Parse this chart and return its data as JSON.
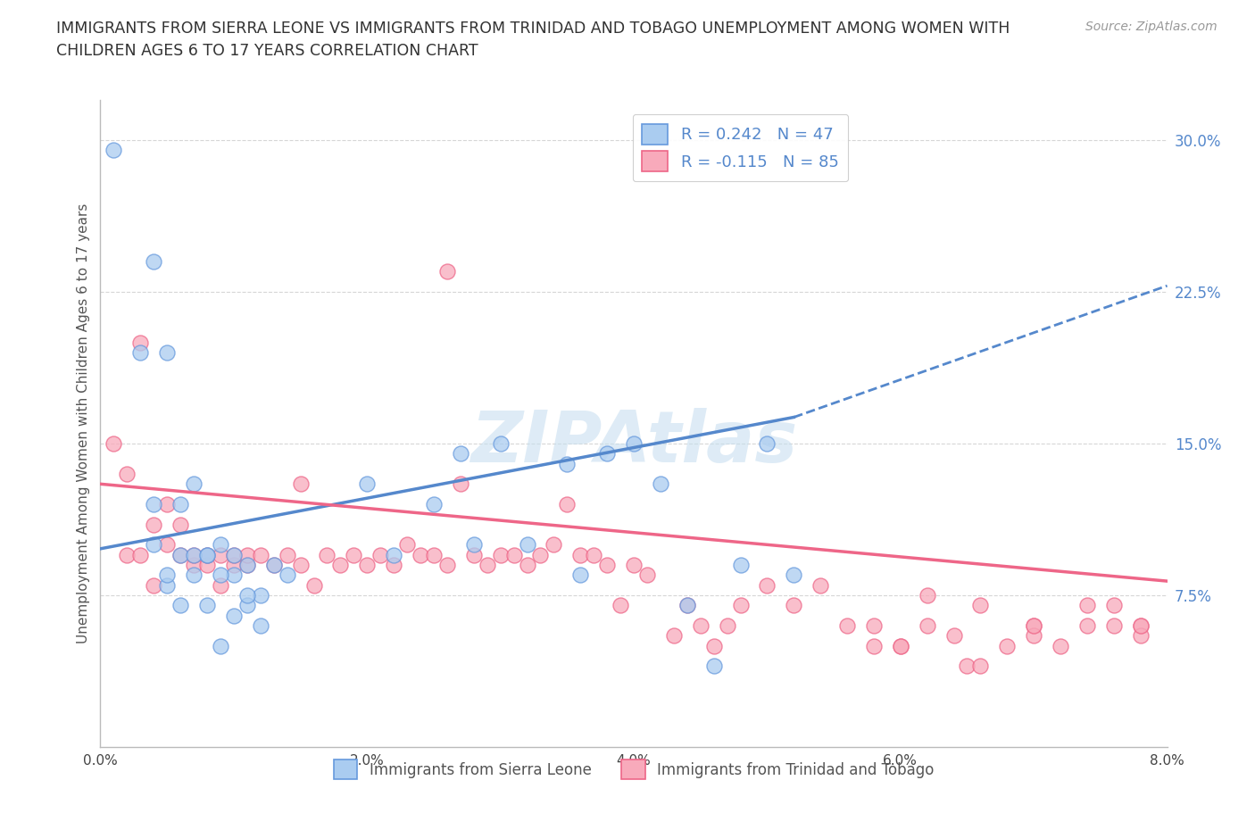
{
  "title_line1": "IMMIGRANTS FROM SIERRA LEONE VS IMMIGRANTS FROM TRINIDAD AND TOBAGO UNEMPLOYMENT AMONG WOMEN WITH",
  "title_line2": "CHILDREN AGES 6 TO 17 YEARS CORRELATION CHART",
  "source": "Source: ZipAtlas.com",
  "ylabel": "Unemployment Among Women with Children Ages 6 to 17 years",
  "xlim": [
    0.0,
    0.08
  ],
  "ylim": [
    0.0,
    0.32
  ],
  "xtick_labels": [
    "0.0%",
    "2.0%",
    "4.0%",
    "6.0%",
    "8.0%"
  ],
  "xtick_values": [
    0.0,
    0.02,
    0.04,
    0.06,
    0.08
  ],
  "ytick_right_labels": [
    "7.5%",
    "15.0%",
    "22.5%",
    "30.0%"
  ],
  "ytick_right_values": [
    0.075,
    0.15,
    0.225,
    0.3
  ],
  "background_color": "#ffffff",
  "plot_bg_color": "#ffffff",
  "grid_color": "#cccccc",
  "sierra_leone_fill": "#aaccf0",
  "sierra_leone_edge": "#6699dd",
  "trinidad_fill": "#f8aabb",
  "trinidad_edge": "#ee6688",
  "sierra_leone_line_color": "#5588cc",
  "trinidad_line_color": "#ee6688",
  "sierra_leone_R": 0.242,
  "sierra_leone_N": 47,
  "trinidad_R": -0.115,
  "trinidad_N": 85,
  "legend_label_1": "Immigrants from Sierra Leone",
  "legend_label_2": "Immigrants from Trinidad and Tobago",
  "watermark": "ZIPAtlas",
  "sierra_leone_x": [
    0.001,
    0.003,
    0.004,
    0.005,
    0.006,
    0.007,
    0.008,
    0.009,
    0.01,
    0.011,
    0.012,
    0.013,
    0.014,
    0.004,
    0.005,
    0.006,
    0.007,
    0.008,
    0.009,
    0.01,
    0.011,
    0.012,
    0.004,
    0.005,
    0.006,
    0.007,
    0.008,
    0.009,
    0.01,
    0.011,
    0.02,
    0.022,
    0.025,
    0.027,
    0.028,
    0.03,
    0.032,
    0.035,
    0.036,
    0.038,
    0.04,
    0.042,
    0.044,
    0.046,
    0.048,
    0.05,
    0.052
  ],
  "sierra_leone_y": [
    0.295,
    0.195,
    0.24,
    0.195,
    0.07,
    0.085,
    0.095,
    0.1,
    0.085,
    0.09,
    0.075,
    0.09,
    0.085,
    0.12,
    0.08,
    0.095,
    0.095,
    0.07,
    0.05,
    0.065,
    0.07,
    0.06,
    0.1,
    0.085,
    0.12,
    0.13,
    0.095,
    0.085,
    0.095,
    0.075,
    0.13,
    0.095,
    0.12,
    0.145,
    0.1,
    0.15,
    0.1,
    0.14,
    0.085,
    0.145,
    0.15,
    0.13,
    0.07,
    0.04,
    0.09,
    0.15,
    0.085
  ],
  "trinidad_x": [
    0.001,
    0.002,
    0.002,
    0.003,
    0.003,
    0.004,
    0.004,
    0.005,
    0.005,
    0.006,
    0.006,
    0.007,
    0.007,
    0.008,
    0.008,
    0.009,
    0.009,
    0.01,
    0.01,
    0.011,
    0.011,
    0.012,
    0.013,
    0.014,
    0.015,
    0.015,
    0.016,
    0.017,
    0.018,
    0.019,
    0.02,
    0.021,
    0.022,
    0.023,
    0.024,
    0.025,
    0.026,
    0.026,
    0.027,
    0.028,
    0.029,
    0.03,
    0.031,
    0.032,
    0.033,
    0.034,
    0.035,
    0.036,
    0.037,
    0.038,
    0.039,
    0.04,
    0.041,
    0.043,
    0.044,
    0.045,
    0.046,
    0.047,
    0.048,
    0.05,
    0.052,
    0.054,
    0.056,
    0.058,
    0.06,
    0.062,
    0.064,
    0.066,
    0.068,
    0.07,
    0.072,
    0.074,
    0.076,
    0.078,
    0.062,
    0.065,
    0.07,
    0.074,
    0.076,
    0.078,
    0.058,
    0.06,
    0.066,
    0.07,
    0.078
  ],
  "trinidad_y": [
    0.15,
    0.135,
    0.095,
    0.095,
    0.2,
    0.11,
    0.08,
    0.1,
    0.12,
    0.11,
    0.095,
    0.09,
    0.095,
    0.09,
    0.095,
    0.095,
    0.08,
    0.09,
    0.095,
    0.09,
    0.095,
    0.095,
    0.09,
    0.095,
    0.09,
    0.13,
    0.08,
    0.095,
    0.09,
    0.095,
    0.09,
    0.095,
    0.09,
    0.1,
    0.095,
    0.095,
    0.235,
    0.09,
    0.13,
    0.095,
    0.09,
    0.095,
    0.095,
    0.09,
    0.095,
    0.1,
    0.12,
    0.095,
    0.095,
    0.09,
    0.07,
    0.09,
    0.085,
    0.055,
    0.07,
    0.06,
    0.05,
    0.06,
    0.07,
    0.08,
    0.07,
    0.08,
    0.06,
    0.05,
    0.05,
    0.06,
    0.055,
    0.07,
    0.05,
    0.06,
    0.05,
    0.07,
    0.06,
    0.06,
    0.075,
    0.04,
    0.055,
    0.06,
    0.07,
    0.055,
    0.06,
    0.05,
    0.04,
    0.06,
    0.06
  ]
}
